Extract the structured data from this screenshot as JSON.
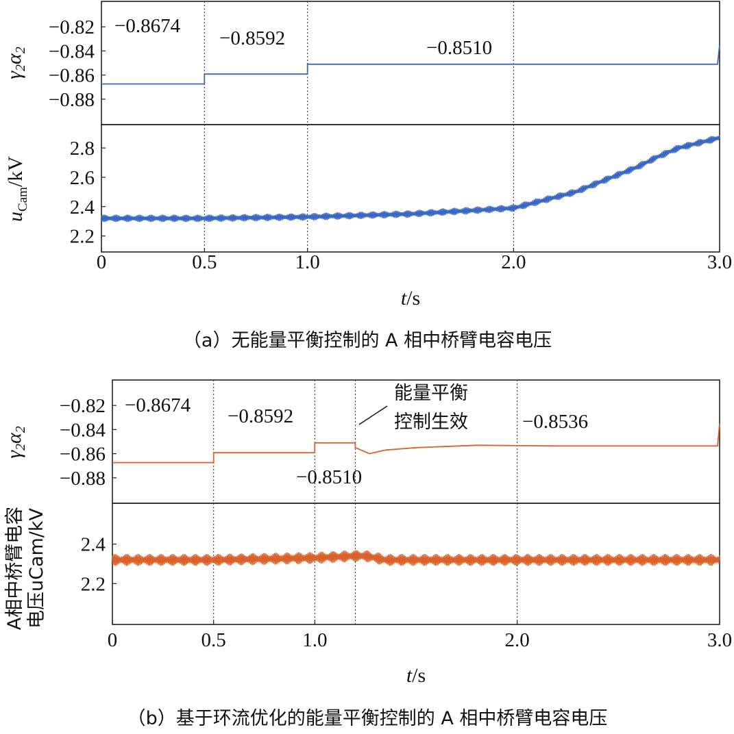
{
  "chart_data": [
    {
      "type": "line",
      "caption": "（a）无能量平衡控制的 A 相中桥臂电容电压",
      "xlabel": "t/s",
      "x_ticks": [
        "0",
        "0.5",
        "1.0",
        "2.0",
        "3.0"
      ],
      "x_tick_values": [
        0,
        0.5,
        1.0,
        2.0,
        3.0
      ],
      "xlim": [
        0,
        3.0
      ],
      "vertical_markers": [
        0.5,
        1.0,
        2.0
      ],
      "line_color": "#3a66c4",
      "panels": [
        {
          "ylabel": "γ2α2",
          "y_ticks": [
            "−0.88",
            "−0.86",
            "−0.84",
            "−0.82"
          ],
          "y_tick_values": [
            0.88,
            0.86,
            0.84,
            0.82
          ],
          "ylim": [
            0.8,
            0.9
          ],
          "inverted": true,
          "series": {
            "x": [
              0,
              0.5,
              0.5,
              1.0,
              1.0,
              2.0,
              2.99,
              3.0
            ],
            "y": [
              0.8674,
              0.8674,
              0.8592,
              0.8592,
              0.851,
              0.851,
              0.851,
              0.835
            ]
          },
          "annotations": [
            "−0.8674",
            "−0.8592",
            "−0.8510"
          ]
        },
        {
          "ylabel": "uCam/kV",
          "y_ticks": [
            "2.8",
            "2.6",
            "2.4",
            "2.2"
          ],
          "y_tick_values": [
            2.8,
            2.6,
            2.4,
            2.2
          ],
          "ylim": [
            2.1,
            2.95
          ],
          "series": {
            "x": [
              0,
              0.5,
              1.0,
              1.5,
              2.0,
              2.3,
              2.6,
              2.7,
              2.8,
              3.0
            ],
            "y": [
              2.32,
              2.32,
              2.33,
              2.35,
              2.39,
              2.5,
              2.67,
              2.74,
              2.8,
              2.87
            ],
            "ripple_amplitude": 0.025
          }
        }
      ]
    },
    {
      "type": "line",
      "caption": "（b）基于环流优化的能量平衡控制的 A 相中桥臂电容电压",
      "xlabel": "t/s",
      "x_ticks": [
        "0",
        "0.5",
        "1.0",
        "2.0",
        "3.0"
      ],
      "x_tick_values": [
        0,
        0.5,
        1.0,
        2.0,
        3.0
      ],
      "xlim": [
        0,
        3.0
      ],
      "vertical_markers": [
        0.5,
        1.0,
        1.2,
        2.0
      ],
      "line_color": "#d9622b",
      "panels": [
        {
          "ylabel": "γ2α2",
          "y_ticks": [
            "−0.88",
            "−0.86",
            "−0.84",
            "−0.82"
          ],
          "y_tick_values": [
            0.88,
            0.86,
            0.84,
            0.82
          ],
          "ylim": [
            0.8,
            0.9
          ],
          "inverted": true,
          "series": {
            "x": [
              0,
              0.5,
              0.5,
              1.0,
              1.0,
              1.2,
              1.2,
              1.27,
              1.35,
              1.5,
              1.8,
              2.2,
              2.6,
              2.99,
              3.0
            ],
            "y": [
              0.8674,
              0.8674,
              0.8592,
              0.8592,
              0.851,
              0.851,
              0.855,
              0.86,
              0.857,
              0.855,
              0.853,
              0.8536,
              0.8536,
              0.8536,
              0.835
            ]
          },
          "annotations": [
            "−0.8674",
            "−0.8592",
            "−0.8510",
            "−0.8536"
          ],
          "callout_line1": "能量平衡",
          "callout_line2": "控制生效"
        },
        {
          "ylabel_line1": "A相中桥臂电容",
          "ylabel_line2": "电压uCam/kV",
          "y_ticks": [
            "2.4",
            "2.2"
          ],
          "y_tick_values": [
            2.4,
            2.2
          ],
          "ylim": [
            2.0,
            2.6
          ],
          "series": {
            "x": [
              0,
              0.5,
              1.0,
              1.2,
              1.25,
              1.35,
              1.5,
              2.0,
              3.0
            ],
            "y": [
              2.32,
              2.32,
              2.33,
              2.34,
              2.34,
              2.32,
              2.32,
              2.32,
              2.32
            ],
            "ripple_amplitude": 0.03
          }
        }
      ]
    }
  ]
}
